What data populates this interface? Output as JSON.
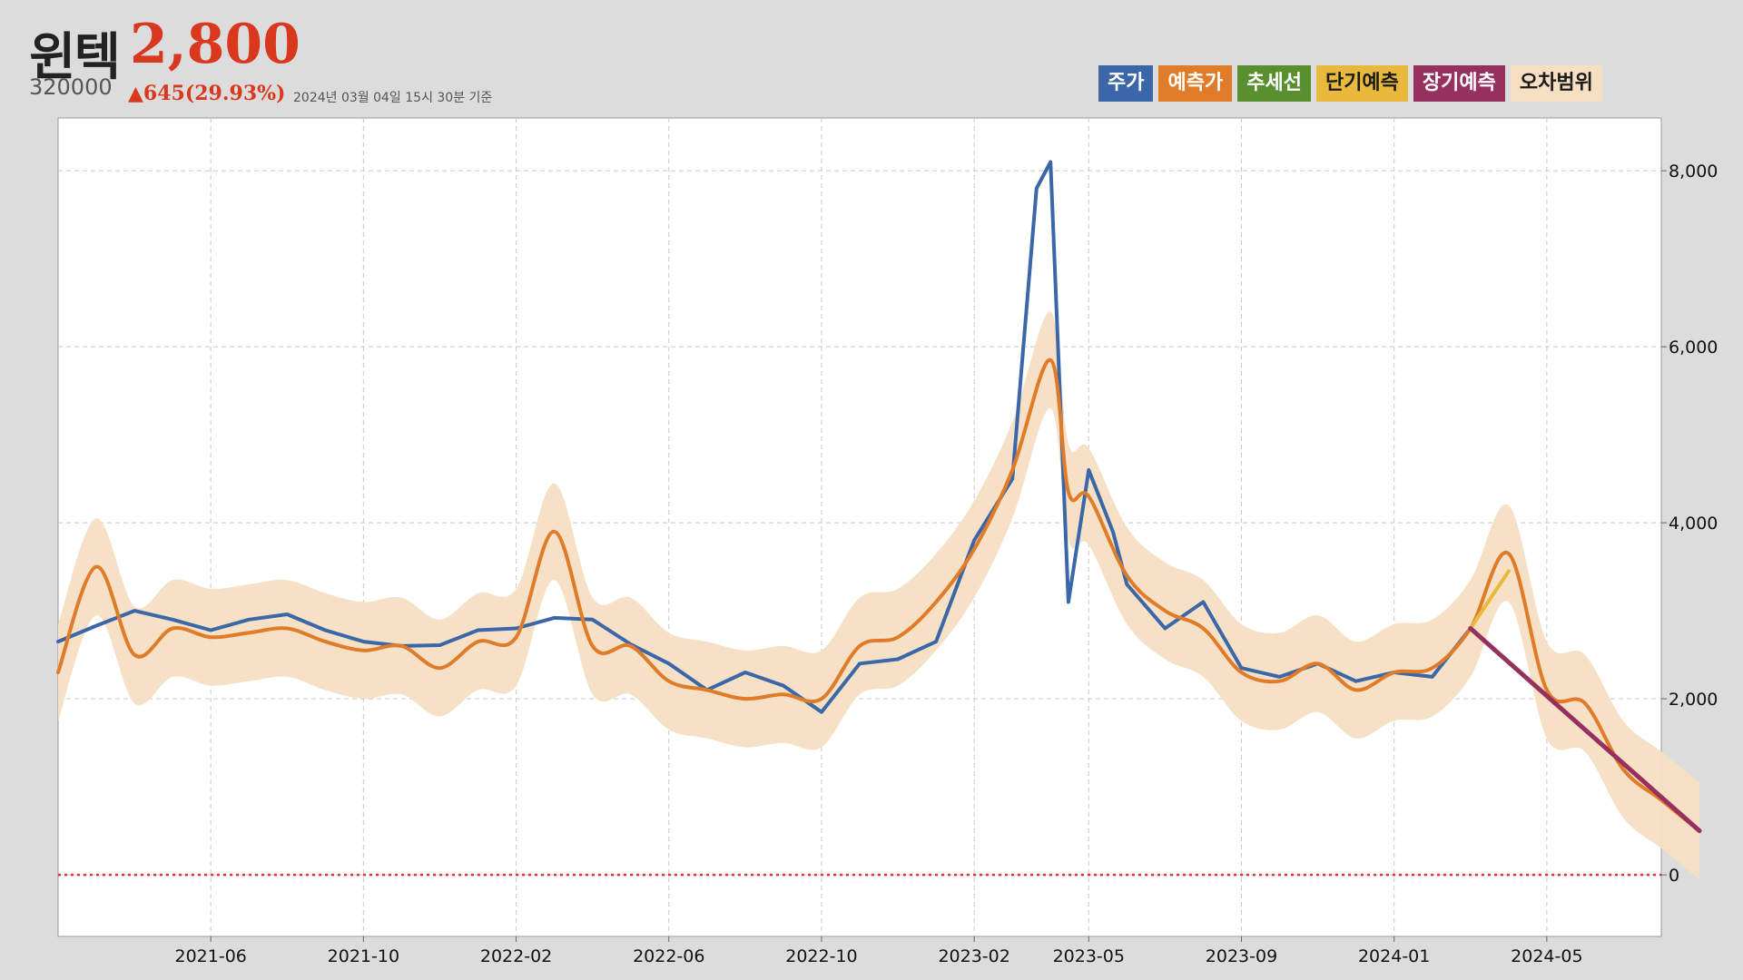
{
  "header": {
    "name": "윈텍",
    "price": "2,800",
    "code": "320000",
    "change": "▲645(29.93%)",
    "as_of": "2024년 03월 04일 15시 30분 기준"
  },
  "legend": [
    {
      "label": "주가",
      "color": "#3b67a8",
      "text_color": "#ffffff"
    },
    {
      "label": "예측가",
      "color": "#e07b2a",
      "text_color": "#ffffff"
    },
    {
      "label": "추세선",
      "color": "#5a8f30",
      "text_color": "#ffffff"
    },
    {
      "label": "단기예측",
      "color": "#e8b93a",
      "text_color": "#1a1a1a"
    },
    {
      "label": "장기예측",
      "color": "#96305f",
      "text_color": "#ffffff"
    },
    {
      "label": "오차범위",
      "color": "#f6dfc3",
      "text_color": "#1a1a1a"
    }
  ],
  "chart_data": {
    "type": "line",
    "x_axis": {
      "ticks": [
        "2021-06",
        "2021-10",
        "2022-02",
        "2022-06",
        "2022-10",
        "2023-02",
        "2023-05",
        "2023-09",
        "2024-01",
        "2024-05"
      ],
      "range": [
        "2021-02",
        "2024-08"
      ]
    },
    "y_axis": {
      "ticks": [
        "0",
        "2,000",
        "4,000",
        "6,000",
        "8,000"
      ],
      "tick_values": [
        0,
        2000,
        4000,
        6000,
        8000
      ],
      "range": [
        -700,
        8600
      ],
      "position": "right"
    },
    "grid": true,
    "zero_line": {
      "value": 0,
      "color": "#e53030",
      "style": "dotted"
    },
    "series": [
      {
        "name": "주가",
        "color": "#3b67a8",
        "points": [
          [
            "2021-02",
            2650
          ],
          [
            "2021-03",
            2830
          ],
          [
            "2021-04",
            3000
          ],
          [
            "2021-05",
            2900
          ],
          [
            "2021-06",
            2780
          ],
          [
            "2021-07",
            2900
          ],
          [
            "2021-08",
            2960
          ],
          [
            "2021-09",
            2780
          ],
          [
            "2021-10",
            2650
          ],
          [
            "2021-11",
            2600
          ],
          [
            "2021-12",
            2610
          ],
          [
            "2022-01",
            2780
          ],
          [
            "2022-02",
            2800
          ],
          [
            "2022-03",
            2920
          ],
          [
            "2022-04",
            2900
          ],
          [
            "2022-05",
            2620
          ],
          [
            "2022-06",
            2400
          ],
          [
            "2022-07",
            2100
          ],
          [
            "2022-08",
            2300
          ],
          [
            "2022-09",
            2150
          ],
          [
            "2022-10",
            1850
          ],
          [
            "2022-11",
            2400
          ],
          [
            "2022-12",
            2450
          ],
          [
            "2023-01",
            2650
          ],
          [
            "2023-02",
            3800
          ],
          [
            "2023-03",
            4500
          ],
          [
            "2023-03-20",
            7800
          ],
          [
            "2023-04",
            8100
          ],
          [
            "2023-04-15",
            3100
          ],
          [
            "2023-05",
            4600
          ],
          [
            "2023-05-20",
            3900
          ],
          [
            "2023-06",
            3300
          ],
          [
            "2023-07",
            2800
          ],
          [
            "2023-08",
            3100
          ],
          [
            "2023-09",
            2350
          ],
          [
            "2023-10",
            2250
          ],
          [
            "2023-11",
            2400
          ],
          [
            "2023-12",
            2200
          ],
          [
            "2024-01",
            2300
          ],
          [
            "2024-02",
            2250
          ],
          [
            "2024-03",
            2800
          ]
        ]
      },
      {
        "name": "예측가",
        "color": "#e07b2a",
        "points": [
          [
            "2021-02",
            2300
          ],
          [
            "2021-03",
            3500
          ],
          [
            "2021-04",
            2500
          ],
          [
            "2021-05",
            2800
          ],
          [
            "2021-06",
            2700
          ],
          [
            "2021-07",
            2750
          ],
          [
            "2021-08",
            2800
          ],
          [
            "2021-09",
            2650
          ],
          [
            "2021-10",
            2550
          ],
          [
            "2021-11",
            2600
          ],
          [
            "2021-12",
            2350
          ],
          [
            "2022-01",
            2650
          ],
          [
            "2022-02",
            2700
          ],
          [
            "2022-03",
            3900
          ],
          [
            "2022-04",
            2600
          ],
          [
            "2022-05",
            2600
          ],
          [
            "2022-06",
            2200
          ],
          [
            "2022-07",
            2100
          ],
          [
            "2022-08",
            2000
          ],
          [
            "2022-09",
            2050
          ],
          [
            "2022-10",
            2000
          ],
          [
            "2022-11",
            2600
          ],
          [
            "2022-12",
            2700
          ],
          [
            "2023-01",
            3100
          ],
          [
            "2023-02",
            3700
          ],
          [
            "2023-03",
            4600
          ],
          [
            "2023-04",
            5850
          ],
          [
            "2023-04-15",
            4350
          ],
          [
            "2023-05",
            4300
          ],
          [
            "2023-06",
            3400
          ],
          [
            "2023-07",
            3000
          ],
          [
            "2023-08",
            2800
          ],
          [
            "2023-09",
            2300
          ],
          [
            "2023-10",
            2200
          ],
          [
            "2023-11",
            2400
          ],
          [
            "2023-12",
            2100
          ],
          [
            "2024-01",
            2300
          ],
          [
            "2024-02",
            2350
          ],
          [
            "2024-03",
            2800
          ],
          [
            "2024-04",
            3650
          ],
          [
            "2024-05",
            2100
          ],
          [
            "2024-06",
            1950
          ],
          [
            "2024-07",
            1200
          ],
          [
            "2024-08",
            850
          ],
          [
            "2024-09",
            500
          ]
        ]
      },
      {
        "name": "단기예측",
        "color": "#e8b93a",
        "points": [
          [
            "2024-03",
            2800
          ],
          [
            "2024-04",
            3450
          ]
        ]
      },
      {
        "name": "장기예측",
        "color": "#96305f",
        "points": [
          [
            "2024-03",
            2800
          ],
          [
            "2024-09",
            500
          ]
        ]
      }
    ],
    "error_band": {
      "name": "오차범위",
      "color": "#f6dfc3",
      "width": 550
    }
  }
}
